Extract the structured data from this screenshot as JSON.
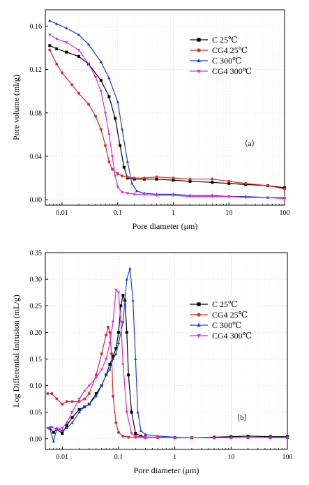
{
  "chart_data": [
    {
      "type": "line",
      "panel_label": "（a）",
      "xlabel": "Pore diameter (μm)",
      "ylabel": "Pore volume (ml/g)",
      "xscale": "log",
      "xlim": [
        0.005,
        100
      ],
      "ylim": [
        -0.005,
        0.175
      ],
      "xticks": [
        {
          "v": 0.01,
          "t": "0.01"
        },
        {
          "v": 0.1,
          "t": "0.1"
        },
        {
          "v": 1,
          "t": "1"
        },
        {
          "v": 10,
          "t": "10"
        },
        {
          "v": 100,
          "t": "100"
        }
      ],
      "yticks": [
        {
          "v": 0,
          "t": "0.00"
        },
        {
          "v": 0.04,
          "t": "0.04"
        },
        {
          "v": 0.08,
          "t": "0.08"
        },
        {
          "v": 0.12,
          "t": "0.12"
        },
        {
          "v": 0.16,
          "t": "0.16"
        }
      ],
      "grid": true,
      "legend_position": "top-right",
      "series": [
        {
          "name": "C   25℃",
          "color": "#000000",
          "marker": "square",
          "x": [
            0.006,
            0.008,
            0.012,
            0.02,
            0.03,
            0.05,
            0.07,
            0.09,
            0.11,
            0.13,
            0.15,
            0.2,
            0.3,
            0.5,
            1,
            2,
            5,
            10,
            20,
            50,
            100
          ],
          "y": [
            0.142,
            0.139,
            0.136,
            0.132,
            0.125,
            0.11,
            0.095,
            0.075,
            0.05,
            0.03,
            0.02,
            0.019,
            0.019,
            0.019,
            0.018,
            0.017,
            0.016,
            0.015,
            0.014,
            0.013,
            0.011
          ]
        },
        {
          "name": "CG4 25℃",
          "color": "#e8261f",
          "marker": "circle",
          "x": [
            0.006,
            0.008,
            0.01,
            0.015,
            0.02,
            0.03,
            0.04,
            0.05,
            0.06,
            0.07,
            0.08,
            0.1,
            0.12,
            0.15,
            0.2,
            0.3,
            0.5,
            1,
            2,
            5,
            10,
            20,
            50,
            100
          ],
          "y": [
            0.138,
            0.125,
            0.117,
            0.106,
            0.098,
            0.088,
            0.077,
            0.065,
            0.05,
            0.035,
            0.028,
            0.024,
            0.022,
            0.021,
            0.02,
            0.02,
            0.021,
            0.02,
            0.019,
            0.019,
            0.017,
            0.015,
            0.013,
            0.01
          ]
        },
        {
          "name": "C   300℃",
          "color": "#1a3ee8",
          "marker": "triangle",
          "x": [
            0.006,
            0.008,
            0.012,
            0.02,
            0.03,
            0.05,
            0.07,
            0.1,
            0.12,
            0.15,
            0.18,
            0.22,
            0.3,
            0.5,
            1,
            2,
            5,
            10,
            20,
            50,
            100
          ],
          "y": [
            0.165,
            0.162,
            0.158,
            0.152,
            0.143,
            0.127,
            0.112,
            0.09,
            0.065,
            0.035,
            0.015,
            0.008,
            0.006,
            0.005,
            0.005,
            0.004,
            0.004,
            0.003,
            0.003,
            0.002,
            0.002
          ]
        },
        {
          "name": "CG4 300℃",
          "color": "#e624e6",
          "marker": "triangle-down",
          "x": [
            0.006,
            0.008,
            0.012,
            0.02,
            0.03,
            0.04,
            0.05,
            0.06,
            0.07,
            0.08,
            0.09,
            0.1,
            0.12,
            0.15,
            0.2,
            0.3,
            0.5,
            1,
            2,
            5,
            10,
            20,
            50,
            100
          ],
          "y": [
            0.152,
            0.148,
            0.145,
            0.138,
            0.125,
            0.113,
            0.1,
            0.08,
            0.06,
            0.04,
            0.022,
            0.012,
            0.007,
            0.006,
            0.005,
            0.005,
            0.004,
            0.004,
            0.003,
            0.003,
            0.003,
            0.002,
            0.002,
            0.001
          ]
        }
      ]
    },
    {
      "type": "line",
      "panel_label": "（b）",
      "xlabel": "Pore diameter (μm)",
      "ylabel": "Log Differential Intrusion (mL/g)",
      "xscale": "log",
      "xlim": [
        0.005,
        100
      ],
      "ylim": [
        -0.02,
        0.35
      ],
      "xticks": [
        {
          "v": 0.01,
          "t": "0.01"
        },
        {
          "v": 0.1,
          "t": "0.1"
        },
        {
          "v": 1,
          "t": "1"
        },
        {
          "v": 10,
          "t": "10"
        },
        {
          "v": 100,
          "t": "100"
        }
      ],
      "yticks": [
        {
          "v": 0,
          "t": "0.00"
        },
        {
          "v": 0.05,
          "t": "0.05"
        },
        {
          "v": 0.1,
          "t": "0.10"
        },
        {
          "v": 0.15,
          "t": "0.15"
        },
        {
          "v": 0.2,
          "t": "0.20"
        },
        {
          "v": 0.25,
          "t": "0.25"
        },
        {
          "v": 0.3,
          "t": "0.30"
        },
        {
          "v": 0.35,
          "t": "0.35"
        }
      ],
      "grid": true,
      "legend_position": "top-right",
      "series": [
        {
          "name": "C 25℃",
          "color": "#000000",
          "marker": "square",
          "x": [
            0.006,
            0.007,
            0.008,
            0.01,
            0.012,
            0.015,
            0.02,
            0.025,
            0.03,
            0.04,
            0.05,
            0.06,
            0.07,
            0.08,
            0.09,
            0.1,
            0.11,
            0.12,
            0.13,
            0.14,
            0.15,
            0.17,
            0.2,
            0.25,
            0.3,
            0.5,
            1,
            2,
            5,
            10,
            20,
            50,
            100
          ],
          "y": [
            0.02,
            0.012,
            0.018,
            0.01,
            0.025,
            0.04,
            0.055,
            0.06,
            0.065,
            0.085,
            0.1,
            0.12,
            0.14,
            0.155,
            0.17,
            0.2,
            0.25,
            0.27,
            0.26,
            0.2,
            0.12,
            0.05,
            0.01,
            0.005,
            0.003,
            0.003,
            0.002,
            0.002,
            0.003,
            0.004,
            0.005,
            0.004,
            0.004
          ]
        },
        {
          "name": "CG4 25℃",
          "color": "#e8261f",
          "marker": "circle",
          "x": [
            0.0055,
            0.0065,
            0.008,
            0.01,
            0.012,
            0.015,
            0.02,
            0.025,
            0.03,
            0.04,
            0.05,
            0.06,
            0.065,
            0.07,
            0.075,
            0.08,
            0.09,
            0.1,
            0.12,
            0.15,
            0.2,
            0.3,
            0.5,
            1,
            2,
            5,
            10,
            20,
            50,
            100
          ],
          "y": [
            0.085,
            0.085,
            0.075,
            0.065,
            0.07,
            0.07,
            0.07,
            0.075,
            0.085,
            0.12,
            0.16,
            0.195,
            0.21,
            0.2,
            0.16,
            0.08,
            0.03,
            0.012,
            0.005,
            0.003,
            0.003,
            0.002,
            0.002,
            0.002,
            0.002,
            0.002,
            0.002,
            0.002,
            0.002,
            0.002
          ]
        },
        {
          "name": "C 300℃",
          "color": "#1a3ee8",
          "marker": "triangle",
          "x": [
            0.006,
            0.007,
            0.008,
            0.01,
            0.012,
            0.015,
            0.02,
            0.025,
            0.03,
            0.04,
            0.05,
            0.06,
            0.07,
            0.08,
            0.09,
            0.1,
            0.12,
            0.14,
            0.16,
            0.18,
            0.2,
            0.22,
            0.25,
            0.3,
            0.5,
            1,
            2,
            5,
            10,
            20,
            50,
            100
          ],
          "y": [
            0.02,
            -0.005,
            0.02,
            0.015,
            0.02,
            0.03,
            0.05,
            0.06,
            0.065,
            0.08,
            0.1,
            0.12,
            0.13,
            0.15,
            0.16,
            0.18,
            0.22,
            0.3,
            0.32,
            0.26,
            0.15,
            0.05,
            0.015,
            0.008,
            0.005,
            0.003,
            0.002,
            0.002,
            0.002,
            0.002,
            0.002,
            0.002
          ]
        },
        {
          "name": "CG4 300℃",
          "color": "#e624e6",
          "marker": "triangle-down",
          "x": [
            0.0055,
            0.0065,
            0.008,
            0.01,
            0.012,
            0.015,
            0.02,
            0.025,
            0.03,
            0.04,
            0.05,
            0.06,
            0.07,
            0.08,
            0.09,
            0.1,
            0.11,
            0.12,
            0.14,
            0.17,
            0.2,
            0.3,
            0.5,
            1,
            2,
            5,
            10,
            20,
            50,
            100
          ],
          "y": [
            0.02,
            0.022,
            0.018,
            0.02,
            0.03,
            0.05,
            0.075,
            0.09,
            0.1,
            0.115,
            0.13,
            0.15,
            0.18,
            0.22,
            0.28,
            0.275,
            0.22,
            0.14,
            0.05,
            0.01,
            0.005,
            0.003,
            0.003,
            0.002,
            0.002,
            0.002,
            0.002,
            0.002,
            0.002,
            0.002
          ]
        }
      ]
    }
  ]
}
